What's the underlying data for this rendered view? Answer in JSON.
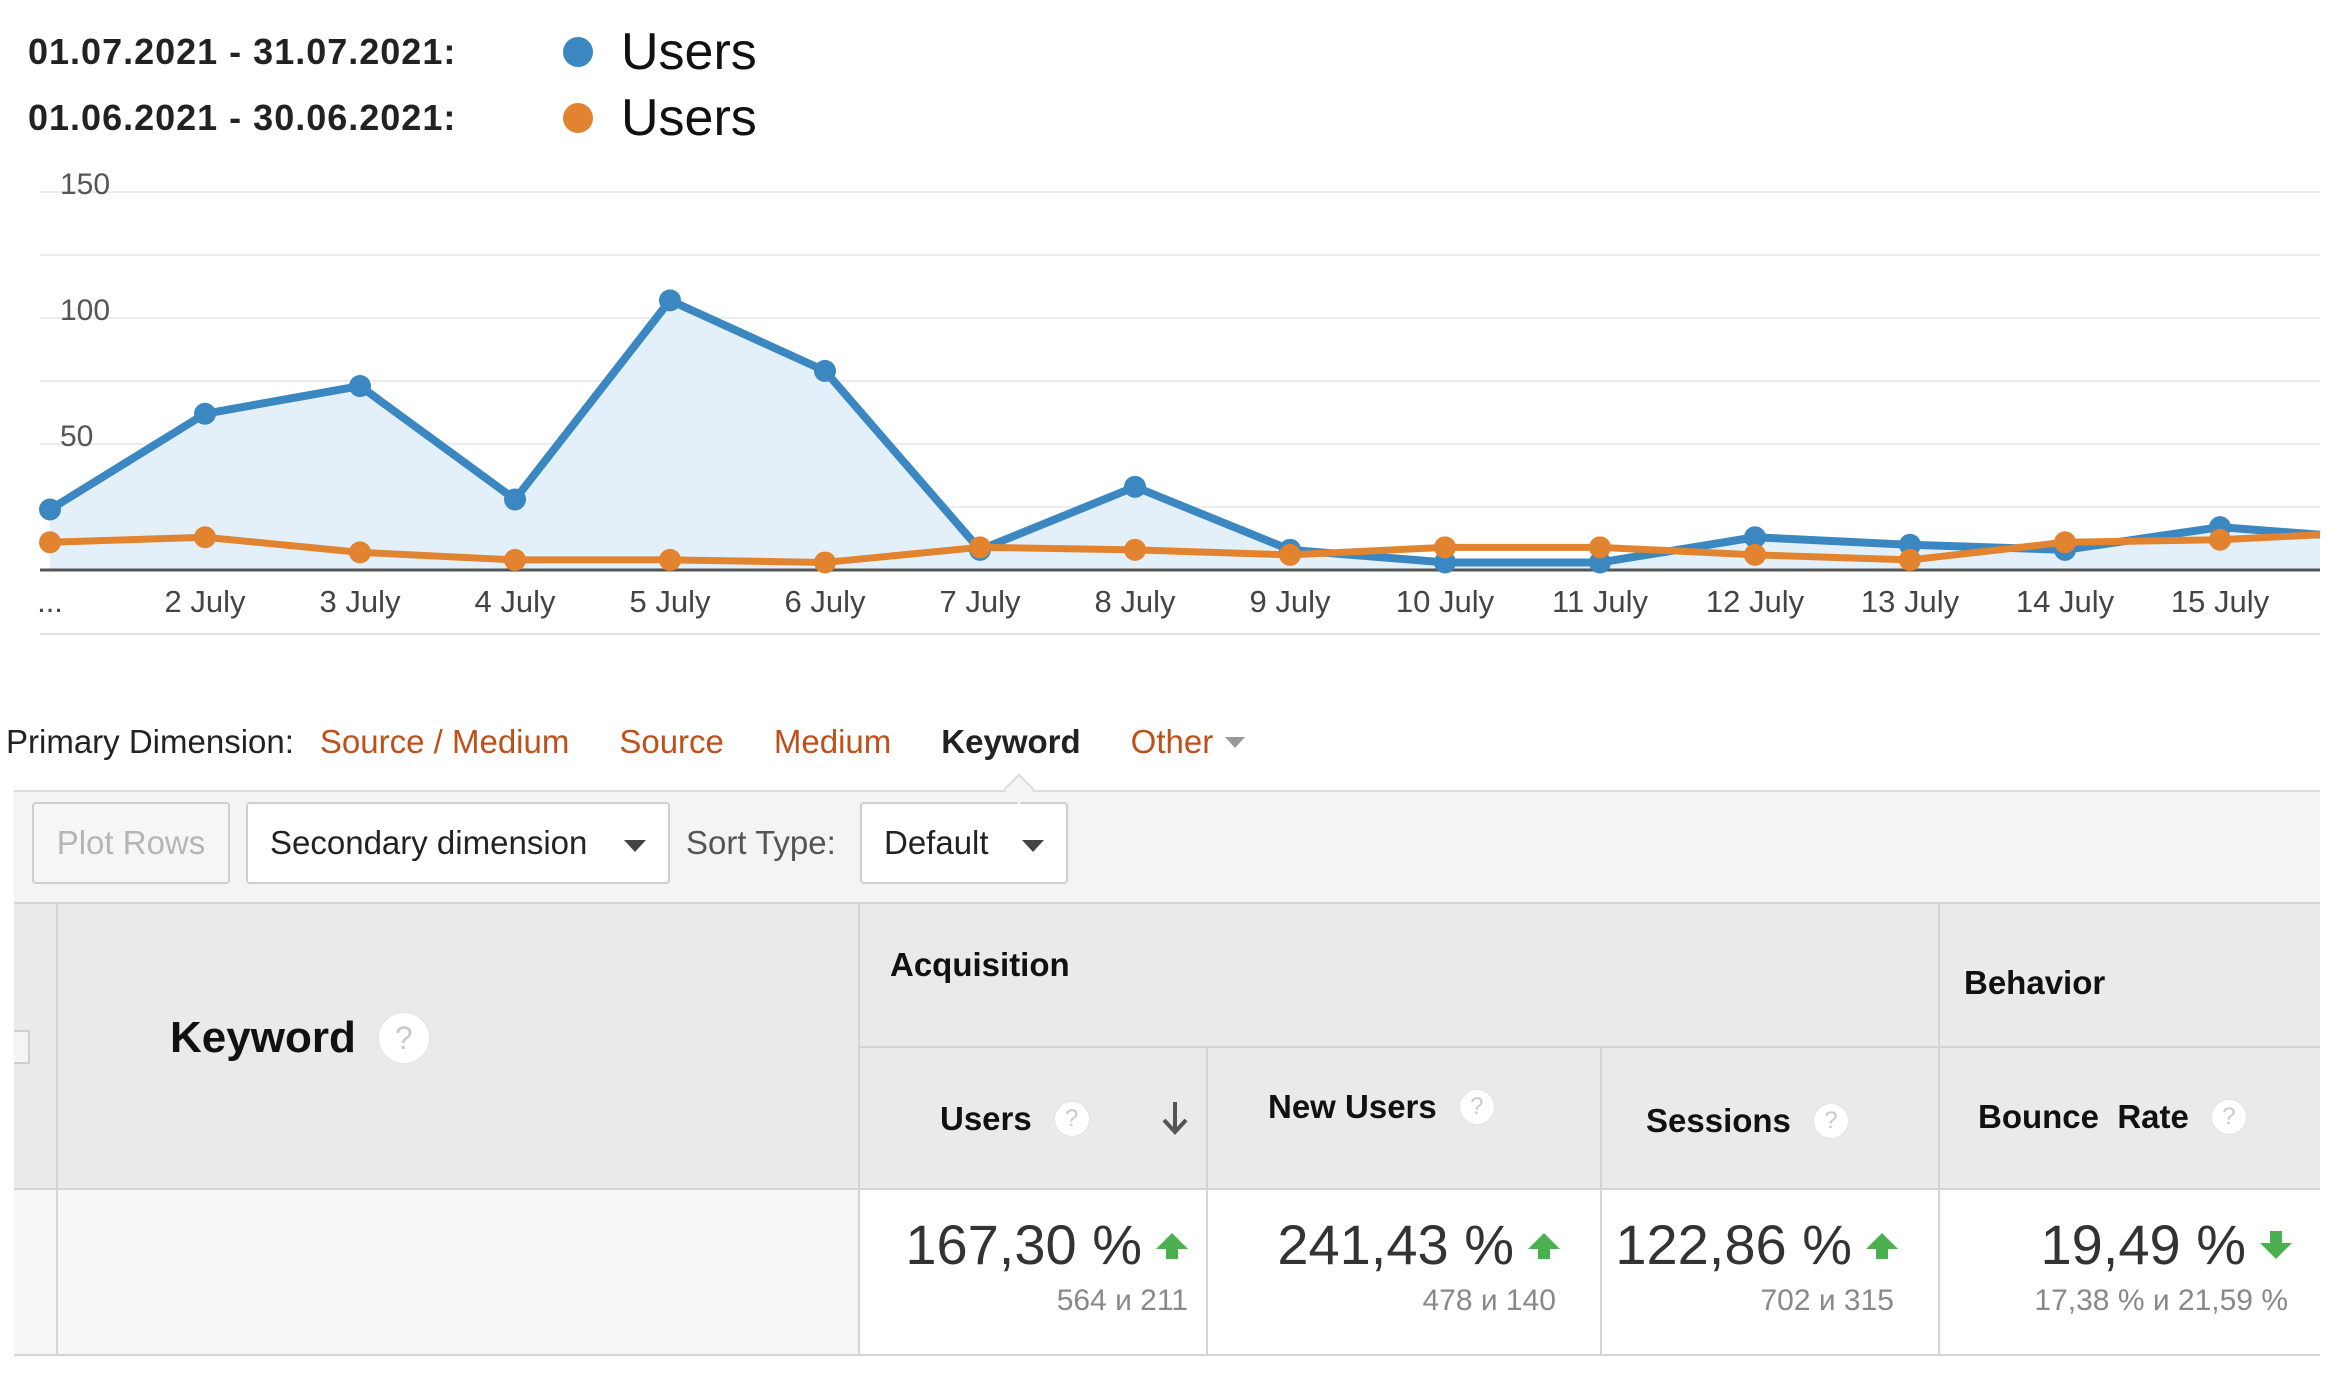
{
  "legend": {
    "current": {
      "date_range": "01.07.2021 - 31.07.2021:",
      "label": "Users",
      "color": "#3a87c2"
    },
    "previous": {
      "date_range": "01.06.2021 - 30.06.2021:",
      "label": "Users",
      "color": "#e2842f"
    }
  },
  "chart_data": {
    "type": "area",
    "x_tick_labels": [
      "...",
      "2 July",
      "3 July",
      "4 July",
      "5 July",
      "6 July",
      "7 July",
      "8 July",
      "9 July",
      "10 July",
      "11 July",
      "12 July",
      "13 July",
      "14 July",
      "15 July"
    ],
    "y_ticks": [
      "150",
      "100",
      "50"
    ],
    "ylim": [
      0,
      150
    ],
    "grid": true,
    "series": [
      {
        "name": "Users",
        "period": "01.07.2021 - 31.07.2021",
        "color": "#3a87c2",
        "fill": "#e3f0fa",
        "values": [
          24,
          62,
          73,
          28,
          107,
          79,
          8,
          33,
          8,
          3,
          3,
          13,
          10,
          8,
          17,
          14
        ]
      },
      {
        "name": "Users",
        "period": "01.06.2021 - 30.06.2021",
        "color": "#e2842f",
        "values": [
          11,
          13,
          7,
          4,
          4,
          3,
          9,
          8,
          6,
          9,
          9,
          6,
          4,
          11,
          12,
          14
        ]
      }
    ]
  },
  "dimensions": {
    "label": "Primary Dimension:",
    "items": [
      "Source / Medium",
      "Source",
      "Medium",
      "Keyword",
      "Other"
    ],
    "active": "Keyword"
  },
  "toolbar": {
    "plot_rows": "Plot Rows",
    "secondary_dimension": "Secondary dimension",
    "sort_type_label": "Sort Type:",
    "sort_type_value": "Default"
  },
  "table": {
    "keyword_header": "Keyword",
    "acquisition_header": "Acquisition",
    "behavior_header": "Behavior",
    "help_glyph": "?",
    "columns": [
      {
        "title": "Users",
        "value": "167,30 %",
        "sub": "564 и 211",
        "trend": "up"
      },
      {
        "title": "New Users",
        "value": "241,43 %",
        "sub": "478 и 140",
        "trend": "up"
      },
      {
        "title": "Sessions",
        "value": "122,86 %",
        "sub": "702 и 315",
        "trend": "up"
      },
      {
        "title": "Bounce  Rate",
        "value": "19,49 %",
        "sub": "17,38 % и 21,59 %",
        "trend": "down"
      }
    ]
  }
}
